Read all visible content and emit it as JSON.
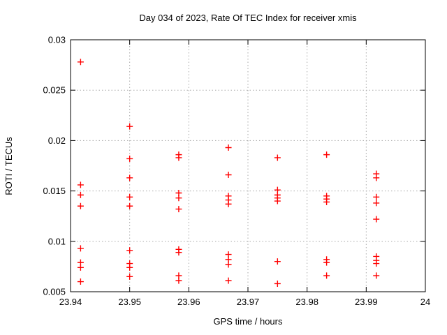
{
  "figure": {
    "title": "Day 034 of 2023, Rate Of TEC Index for receiver xmis",
    "background_color": "#ffffff",
    "border_color": "#000000"
  },
  "chart_data": {
    "type": "scatter",
    "title": "Day 034 of 2023, Rate Of TEC Index for receiver xmis",
    "xlabel": "GPS time / hours",
    "ylabel": "ROTI / TECUs",
    "xlim": [
      23.94,
      24
    ],
    "ylim": [
      0.005,
      0.03
    ],
    "xticks": [
      {
        "value": 23.94,
        "label": "23.94"
      },
      {
        "value": 23.95,
        "label": "23.95"
      },
      {
        "value": 23.96,
        "label": "23.96"
      },
      {
        "value": 23.97,
        "label": "23.97"
      },
      {
        "value": 23.98,
        "label": "23.98"
      },
      {
        "value": 23.99,
        "label": "23.99"
      },
      {
        "value": 24,
        "label": "24"
      }
    ],
    "yticks": [
      {
        "value": 0.005,
        "label": "0.005"
      },
      {
        "value": 0.01,
        "label": "0.01"
      },
      {
        "value": 0.015,
        "label": "0.015"
      },
      {
        "value": 0.02,
        "label": "0.02"
      },
      {
        "value": 0.025,
        "label": "0.025"
      },
      {
        "value": 0.03,
        "label": "0.03"
      }
    ],
    "grid": true,
    "grid_color": "#a8a8a8",
    "legend_position": "none",
    "marker": {
      "shape": "plus",
      "color": "#ff0000",
      "size": 9,
      "stroke_width": 1.4
    },
    "series": [
      {
        "name": "roti",
        "points": [
          [
            23.9417,
            0.0278
          ],
          [
            23.9417,
            0.0156
          ],
          [
            23.9417,
            0.0146
          ],
          [
            23.9417,
            0.0135
          ],
          [
            23.9417,
            0.0093
          ],
          [
            23.9417,
            0.0079
          ],
          [
            23.9417,
            0.0074
          ],
          [
            23.9417,
            0.006
          ],
          [
            23.95,
            0.0214
          ],
          [
            23.95,
            0.0182
          ],
          [
            23.95,
            0.0163
          ],
          [
            23.95,
            0.0144
          ],
          [
            23.95,
            0.0135
          ],
          [
            23.95,
            0.0091
          ],
          [
            23.95,
            0.0078
          ],
          [
            23.95,
            0.0074
          ],
          [
            23.95,
            0.0065
          ],
          [
            23.9583,
            0.0186
          ],
          [
            23.9583,
            0.0183
          ],
          [
            23.9583,
            0.0148
          ],
          [
            23.9583,
            0.0143
          ],
          [
            23.9583,
            0.0132
          ],
          [
            23.9583,
            0.0092
          ],
          [
            23.9583,
            0.0089
          ],
          [
            23.9583,
            0.0066
          ],
          [
            23.9583,
            0.0061
          ],
          [
            23.9667,
            0.0193
          ],
          [
            23.9667,
            0.0166
          ],
          [
            23.9667,
            0.0145
          ],
          [
            23.9667,
            0.0141
          ],
          [
            23.9667,
            0.0137
          ],
          [
            23.9667,
            0.0087
          ],
          [
            23.9667,
            0.0082
          ],
          [
            23.9667,
            0.0077
          ],
          [
            23.9667,
            0.0061
          ],
          [
            23.975,
            0.0183
          ],
          [
            23.975,
            0.0151
          ],
          [
            23.975,
            0.0146
          ],
          [
            23.975,
            0.0143
          ],
          [
            23.975,
            0.014
          ],
          [
            23.975,
            0.008
          ],
          [
            23.975,
            0.0058
          ],
          [
            23.9833,
            0.0186
          ],
          [
            23.9833,
            0.0145
          ],
          [
            23.9833,
            0.0142
          ],
          [
            23.9833,
            0.0139
          ],
          [
            23.9833,
            0.0082
          ],
          [
            23.9833,
            0.0079
          ],
          [
            23.9833,
            0.0066
          ],
          [
            23.9917,
            0.0167
          ],
          [
            23.9917,
            0.0163
          ],
          [
            23.9917,
            0.0144
          ],
          [
            23.9917,
            0.0138
          ],
          [
            23.9917,
            0.0122
          ],
          [
            23.9917,
            0.0085
          ],
          [
            23.9917,
            0.0081
          ],
          [
            23.9917,
            0.0078
          ],
          [
            23.9917,
            0.0066
          ]
        ]
      }
    ]
  }
}
